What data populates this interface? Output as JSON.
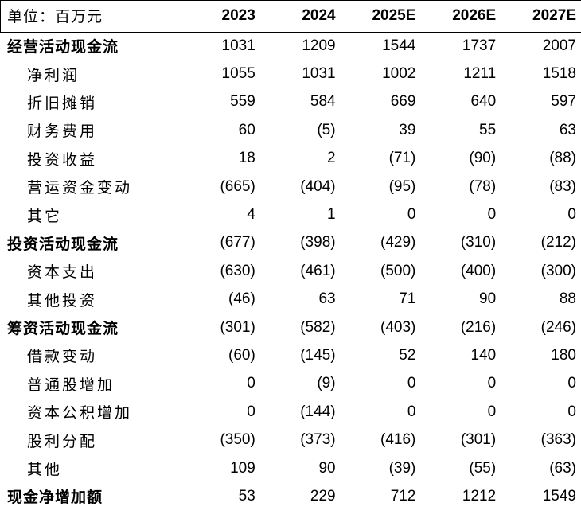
{
  "header": {
    "unit_label": "单位：百万元",
    "years": [
      "2023",
      "2024",
      "2025E",
      "2026E",
      "2027E"
    ]
  },
  "rows": [
    {
      "label": "经营活动现金流",
      "section": true,
      "values": [
        "1031",
        "1209",
        "1544",
        "1737",
        "2007"
      ]
    },
    {
      "label": "净利润",
      "section": false,
      "values": [
        "1055",
        "1031",
        "1002",
        "1211",
        "1518"
      ]
    },
    {
      "label": "折旧摊销",
      "section": false,
      "values": [
        "559",
        "584",
        "669",
        "640",
        "597"
      ]
    },
    {
      "label": "财务费用",
      "section": false,
      "values": [
        "60",
        "(5)",
        "39",
        "55",
        "63"
      ]
    },
    {
      "label": "投资收益",
      "section": false,
      "values": [
        "18",
        "2",
        "(71)",
        "(90)",
        "(88)"
      ]
    },
    {
      "label": "营运资金变动",
      "section": false,
      "values": [
        "(665)",
        "(404)",
        "(95)",
        "(78)",
        "(83)"
      ]
    },
    {
      "label": "其它",
      "section": false,
      "values": [
        "4",
        "1",
        "0",
        "0",
        "0"
      ]
    },
    {
      "label": "投资活动现金流",
      "section": true,
      "values": [
        "(677)",
        "(398)",
        "(429)",
        "(310)",
        "(212)"
      ]
    },
    {
      "label": "资本支出",
      "section": false,
      "values": [
        "(630)",
        "(461)",
        "(500)",
        "(400)",
        "(300)"
      ]
    },
    {
      "label": "其他投资",
      "section": false,
      "values": [
        "(46)",
        "63",
        "71",
        "90",
        "88"
      ]
    },
    {
      "label": "筹资活动现金流",
      "section": true,
      "values": [
        "(301)",
        "(582)",
        "(403)",
        "(216)",
        "(246)"
      ]
    },
    {
      "label": "借款变动",
      "section": false,
      "values": [
        "(60)",
        "(145)",
        "52",
        "140",
        "180"
      ]
    },
    {
      "label": "普通股增加",
      "section": false,
      "values": [
        "0",
        "(9)",
        "0",
        "0",
        "0"
      ]
    },
    {
      "label": "资本公积增加",
      "section": false,
      "values": [
        "0",
        "(144)",
        "0",
        "0",
        "0"
      ]
    },
    {
      "label": "股利分配",
      "section": false,
      "values": [
        "(350)",
        "(373)",
        "(416)",
        "(301)",
        "(363)"
      ]
    },
    {
      "label": "其他",
      "section": false,
      "values": [
        "109",
        "90",
        "(39)",
        "(55)",
        "(63)"
      ]
    },
    {
      "label": "现金净增加额",
      "section": true,
      "values": [
        "53",
        "229",
        "712",
        "1212",
        "1549"
      ]
    }
  ]
}
